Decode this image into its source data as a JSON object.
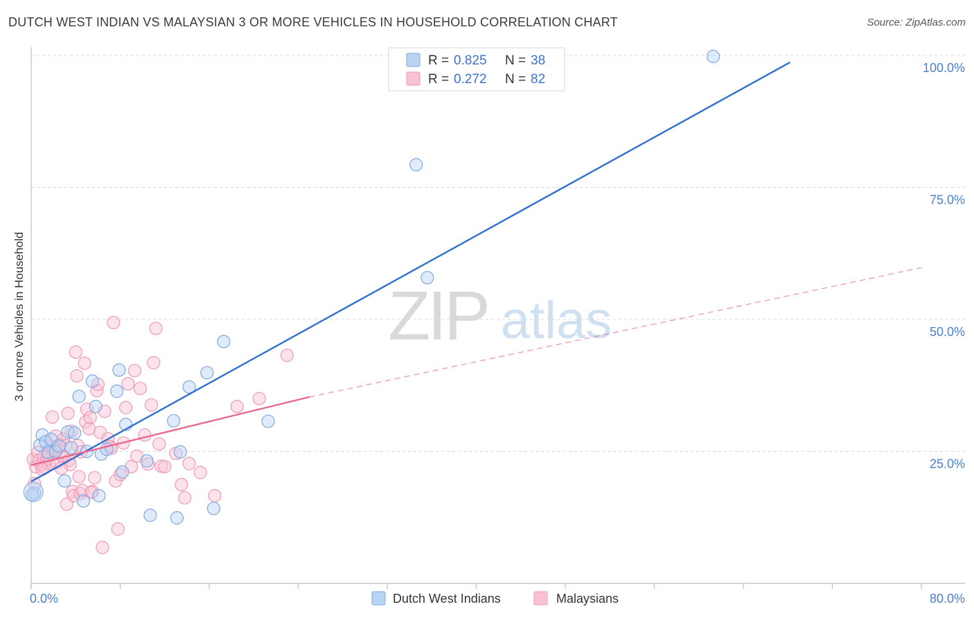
{
  "title": "DUTCH WEST INDIAN VS MALAYSIAN 3 OR MORE VEHICLES IN HOUSEHOLD CORRELATION CHART",
  "source": "Source: ZipAtlas.com",
  "watermark": {
    "zip": "ZIP",
    "atlas": "atlas"
  },
  "colors": {
    "blue_fill": "#b9d3f3",
    "blue_stroke": "#7ea8df",
    "blue_line": "#2f6fcf",
    "pink_fill": "#f8c2d2",
    "pink_stroke": "#ee9ab5",
    "pink_line": "#e8688f",
    "axis_label": "#4a7fd0",
    "grid": "#d8d8d8"
  },
  "legend": {
    "rows": [
      {
        "r_label": "R =",
        "r_value": "0.825",
        "n_label": "N =",
        "n_value": "38"
      },
      {
        "r_label": "R =",
        "r_value": "0.272",
        "n_label": "N =",
        "n_value": "82"
      }
    ]
  },
  "bottom_legend": [
    "Dutch West Indians",
    "Malaysians"
  ],
  "chart_data": {
    "type": "scatter",
    "title": "DUTCH WEST INDIAN VS MALAYSIAN 3 OR MORE VEHICLES IN HOUSEHOLD CORRELATION CHART",
    "xlabel": "",
    "ylabel": "3 or more Vehicles in Household",
    "xlim": [
      0,
      80
    ],
    "ylim": [
      0,
      100
    ],
    "x_tick_labels": [
      "0.0%",
      "80.0%"
    ],
    "y_ticks": [
      25,
      50,
      75,
      100
    ],
    "y_tick_labels": [
      "25.0%",
      "50.0%",
      "75.0%",
      "100.0%"
    ],
    "grid": true,
    "series": [
      {
        "name": "Dutch West Indians",
        "r": 0.825,
        "n": 38,
        "trend": {
          "x": [
            0,
            68.2
          ],
          "y": [
            19.3,
            98.7
          ],
          "style": "solid"
        },
        "points": [
          [
            0.3,
            17.1
          ],
          [
            0.8,
            26.2
          ],
          [
            1.0,
            28.1
          ],
          [
            1.3,
            26.8
          ],
          [
            1.5,
            24.8
          ],
          [
            1.8,
            27.3
          ],
          [
            2.2,
            25.0
          ],
          [
            2.5,
            26.0
          ],
          [
            3.0,
            19.4
          ],
          [
            3.3,
            28.7
          ],
          [
            3.6,
            25.7
          ],
          [
            3.9,
            28.5
          ],
          [
            4.3,
            35.4
          ],
          [
            4.7,
            15.6
          ],
          [
            5.0,
            25.0
          ],
          [
            5.5,
            38.3
          ],
          [
            5.8,
            33.5
          ],
          [
            6.1,
            16.6
          ],
          [
            6.3,
            24.5
          ],
          [
            6.8,
            25.4
          ],
          [
            7.7,
            36.4
          ],
          [
            7.9,
            40.4
          ],
          [
            8.2,
            21.1
          ],
          [
            8.5,
            30.1
          ],
          [
            10.4,
            23.2
          ],
          [
            10.7,
            12.9
          ],
          [
            12.8,
            30.8
          ],
          [
            13.1,
            12.4
          ],
          [
            13.4,
            24.9
          ],
          [
            14.2,
            37.2
          ],
          [
            15.8,
            39.9
          ],
          [
            16.4,
            14.2
          ],
          [
            17.3,
            45.8
          ],
          [
            21.3,
            30.7
          ],
          [
            34.6,
            79.3
          ],
          [
            35.6,
            57.9
          ],
          [
            61.3,
            99.8
          ],
          [
            0.1,
            16.8
          ]
        ]
      },
      {
        "name": "Malaysians",
        "r": 0.272,
        "n": 82,
        "trend": {
          "x": [
            0,
            25.0
          ],
          "y": [
            22.4,
            35.3
          ],
          "style": "solid"
        },
        "trend_extension": {
          "x": [
            25.0,
            80.0
          ],
          "y": [
            35.3,
            59.8
          ],
          "style": "dashed"
        },
        "points": [
          [
            0.2,
            23.5
          ],
          [
            0.4,
            22.1
          ],
          [
            0.6,
            24.8
          ],
          [
            0.7,
            23.3
          ],
          [
            0.9,
            22.5
          ],
          [
            1.1,
            23.9
          ],
          [
            1.2,
            21.9
          ],
          [
            1.4,
            23.4
          ],
          [
            1.5,
            24.2
          ],
          [
            1.6,
            22.7
          ],
          [
            1.7,
            26.0
          ],
          [
            1.9,
            31.5
          ],
          [
            2.0,
            25.1
          ],
          [
            2.2,
            27.9
          ],
          [
            2.3,
            22.9
          ],
          [
            2.4,
            25.4
          ],
          [
            2.6,
            26.3
          ],
          [
            2.8,
            24.1
          ],
          [
            2.9,
            27.3
          ],
          [
            3.0,
            23.9
          ],
          [
            3.1,
            26.1
          ],
          [
            3.3,
            32.2
          ],
          [
            3.4,
            23.3
          ],
          [
            3.5,
            22.5
          ],
          [
            3.6,
            28.8
          ],
          [
            3.7,
            17.4
          ],
          [
            3.8,
            16.6
          ],
          [
            4.0,
            43.8
          ],
          [
            4.1,
            39.3
          ],
          [
            4.2,
            26.1
          ],
          [
            4.3,
            20.2
          ],
          [
            4.4,
            17.0
          ],
          [
            4.5,
            24.9
          ],
          [
            4.6,
            17.6
          ],
          [
            4.8,
            41.7
          ],
          [
            4.9,
            30.6
          ],
          [
            5.0,
            33.0
          ],
          [
            5.2,
            29.3
          ],
          [
            5.3,
            31.4
          ],
          [
            5.5,
            17.4
          ],
          [
            5.7,
            20.0
          ],
          [
            5.9,
            36.5
          ],
          [
            6.0,
            37.7
          ],
          [
            6.2,
            28.6
          ],
          [
            6.4,
            6.8
          ],
          [
            6.6,
            32.6
          ],
          [
            6.9,
            27.4
          ],
          [
            7.1,
            25.9
          ],
          [
            7.4,
            49.4
          ],
          [
            7.6,
            19.4
          ],
          [
            7.8,
            10.3
          ],
          [
            8.0,
            20.6
          ],
          [
            8.3,
            26.6
          ],
          [
            8.5,
            33.3
          ],
          [
            8.7,
            37.8
          ],
          [
            9.0,
            22.1
          ],
          [
            9.3,
            40.3
          ],
          [
            9.5,
            24.1
          ],
          [
            9.8,
            36.9
          ],
          [
            10.2,
            28.1
          ],
          [
            10.5,
            22.6
          ],
          [
            10.8,
            33.8
          ],
          [
            11.0,
            41.8
          ],
          [
            11.2,
            48.3
          ],
          [
            11.5,
            26.4
          ],
          [
            11.7,
            22.2
          ],
          [
            12.0,
            22.1
          ],
          [
            13.0,
            24.6
          ],
          [
            13.5,
            18.7
          ],
          [
            13.8,
            16.2
          ],
          [
            14.2,
            22.7
          ],
          [
            15.2,
            21.0
          ],
          [
            16.5,
            16.6
          ],
          [
            18.5,
            33.5
          ],
          [
            20.5,
            35.0
          ],
          [
            23.0,
            43.2
          ],
          [
            0.3,
            18.9
          ],
          [
            1.0,
            21.6
          ],
          [
            2.7,
            21.8
          ],
          [
            5.4,
            17.2
          ],
          [
            7.2,
            25.6
          ],
          [
            3.2,
            15.0
          ]
        ]
      }
    ]
  }
}
